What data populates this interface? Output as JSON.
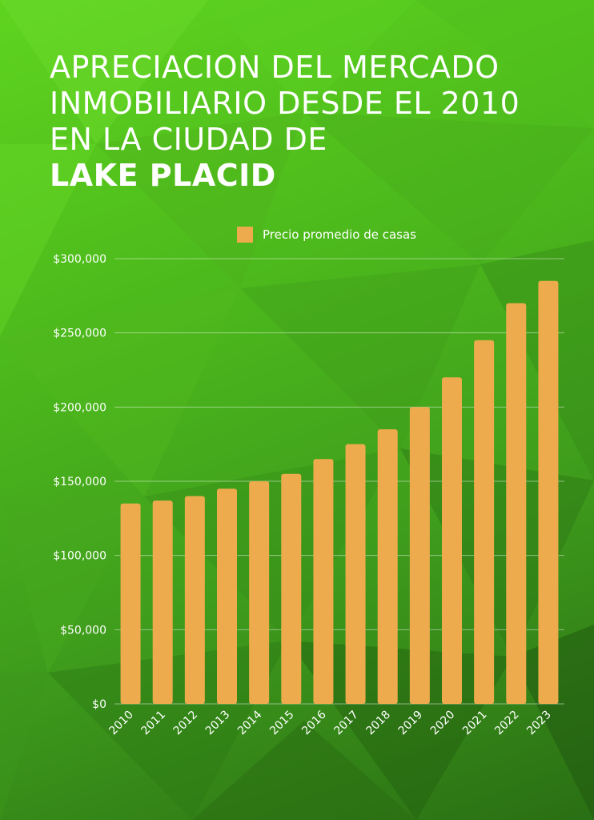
{
  "title": {
    "line1": "APRECIACION DEL MERCADO",
    "line2": "INMOBILIARIO DESDE EL 2010",
    "line3": "EN LA CIUDAD DE",
    "line4": "LAKE PLACID"
  },
  "colors": {
    "bar": "#eeab4d",
    "text": "#ffffff"
  },
  "chart_data": {
    "type": "bar",
    "categories": [
      "2010",
      "2011",
      "2012",
      "2013",
      "2014",
      "2015",
      "2016",
      "2017",
      "2018",
      "2019",
      "2020",
      "2021",
      "2022",
      "2023"
    ],
    "series": [
      {
        "name": "Precio promedio de casas",
        "values": [
          135000,
          137000,
          140000,
          145000,
          150000,
          155000,
          165000,
          175000,
          185000,
          200000,
          220000,
          245000,
          270000,
          285000
        ]
      }
    ],
    "ylim": [
      0,
      300000
    ],
    "yticks": [
      0,
      50000,
      100000,
      150000,
      200000,
      250000,
      300000
    ],
    "ytick_labels": [
      "$0",
      "$50,000",
      "$100,000",
      "$150,000",
      "$200,000",
      "$250,000",
      "$300,000"
    ],
    "grid": true,
    "legend_position": "top-center"
  }
}
